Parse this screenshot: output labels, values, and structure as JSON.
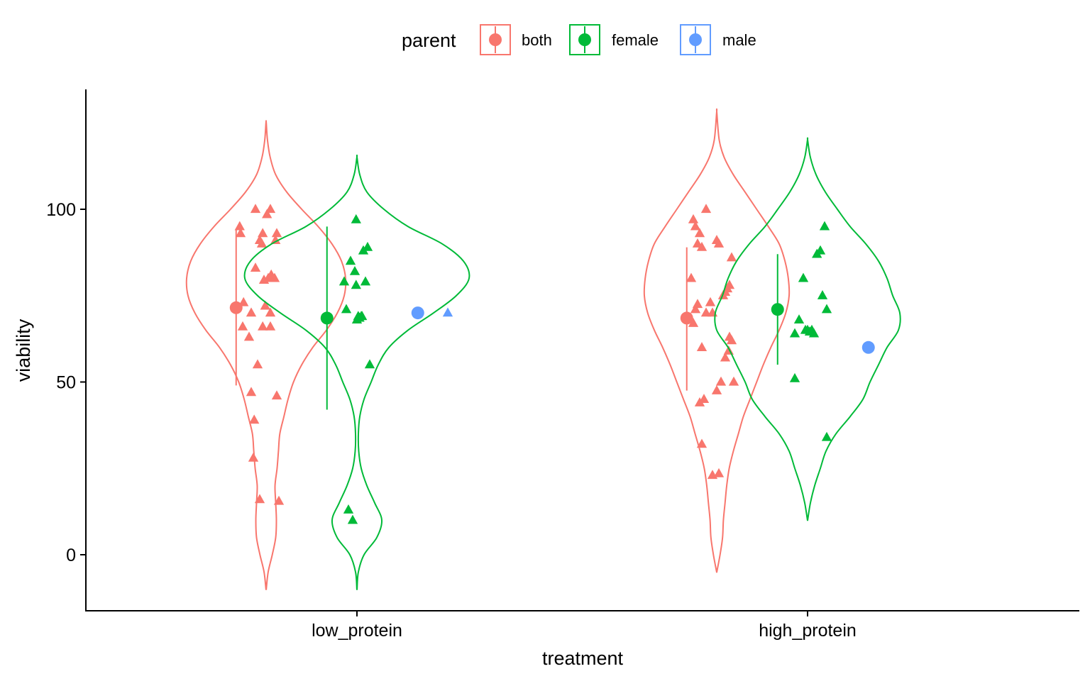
{
  "chart_data": {
    "type": "violin",
    "xlabel": "treatment",
    "ylabel": "viability",
    "categories": [
      "low_protein",
      "high_protein"
    ],
    "ylim": [
      -16,
      135
    ],
    "yticks": [
      0,
      50,
      100
    ],
    "grid": false,
    "legend": {
      "title": "parent",
      "position": "top",
      "entries": [
        {
          "key": "both",
          "label": "both",
          "color": "#F8766D"
        },
        {
          "key": "female",
          "label": "female",
          "color": "#00BA38"
        },
        {
          "key": "male",
          "label": "male",
          "color": "#619CFF"
        }
      ]
    },
    "groups": [
      {
        "category": "low_protein",
        "parent": "both",
        "color": "#F8766D",
        "violin": {
          "profile": [
            [
              -10,
              0.1
            ],
            [
              -5,
              1.5
            ],
            [
              0,
              4.5
            ],
            [
              5,
              7
            ],
            [
              10,
              7.5
            ],
            [
              15,
              7
            ],
            [
              20,
              6.5
            ],
            [
              25,
              8
            ],
            [
              30,
              9
            ],
            [
              35,
              10
            ],
            [
              40,
              13
            ],
            [
              45,
              16
            ],
            [
              50,
              20
            ],
            [
              55,
              26
            ],
            [
              60,
              34
            ],
            [
              65,
              44
            ],
            [
              70,
              52
            ],
            [
              75,
              57
            ],
            [
              80,
              58
            ],
            [
              85,
              55
            ],
            [
              90,
              48
            ],
            [
              95,
              38
            ],
            [
              100,
              26
            ],
            [
              105,
              15
            ],
            [
              110,
              7
            ],
            [
              115,
              3
            ],
            [
              120,
              1
            ],
            [
              125,
              0.1
            ]
          ],
          "max_half_width": 112
        },
        "summary": {
          "mean": 71.5,
          "low": 49,
          "high": 94
        },
        "points": [
          [
            -0.6,
            93
          ],
          [
            -0.62,
            95
          ],
          [
            -0.53,
            73
          ],
          [
            -0.55,
            66
          ],
          [
            -0.4,
            63
          ],
          [
            -0.35,
            70
          ],
          [
            -0.35,
            47
          ],
          [
            -0.28,
            39
          ],
          [
            -0.3,
            28
          ],
          [
            -0.2,
            55
          ],
          [
            -0.15,
            16
          ],
          [
            -0.25,
            100
          ],
          [
            -0.25,
            83
          ],
          [
            -0.05,
            79.5
          ],
          [
            0.05,
            80
          ],
          [
            0.1,
            80.5
          ],
          [
            -0.15,
            91
          ],
          [
            -0.1,
            90
          ],
          [
            -0.08,
            93
          ],
          [
            0.02,
            98.5
          ],
          [
            0.1,
            100
          ],
          [
            0.22,
            91
          ],
          [
            0.2,
            80
          ],
          [
            0.1,
            70
          ],
          [
            0.12,
            81
          ],
          [
            -0.08,
            66
          ],
          [
            -0.02,
            72
          ],
          [
            0.1,
            66
          ],
          [
            0.25,
            46
          ],
          [
            0.3,
            15.5
          ],
          [
            0.25,
            93
          ]
        ]
      },
      {
        "category": "low_protein",
        "parent": "female",
        "color": "#00BA38",
        "violin": {
          "profile": [
            [
              -10,
              0.1
            ],
            [
              -5,
              2
            ],
            [
              0,
              10
            ],
            [
              5,
              28
            ],
            [
              10,
              35
            ],
            [
              15,
              25
            ],
            [
              20,
              14
            ],
            [
              25,
              6
            ],
            [
              30,
              2.5
            ],
            [
              35,
              2
            ],
            [
              40,
              4
            ],
            [
              45,
              10
            ],
            [
              50,
              20
            ],
            [
              55,
              30
            ],
            [
              60,
              45
            ],
            [
              65,
              72
            ],
            [
              70,
              108
            ],
            [
              75,
              140
            ],
            [
              80,
              158
            ],
            [
              85,
              150
            ],
            [
              90,
              120
            ],
            [
              95,
              72
            ],
            [
              100,
              38
            ],
            [
              105,
              14
            ],
            [
              110,
              4
            ],
            [
              115,
              0.1
            ]
          ],
          "max_half_width": 158
        },
        "summary": {
          "mean": 68.5,
          "low": 42,
          "high": 95
        },
        "points": [
          [
            -0.3,
            79
          ],
          [
            -0.25,
            71
          ],
          [
            -0.2,
            13
          ],
          [
            -0.15,
            85
          ],
          [
            -0.1,
            10
          ],
          [
            -0.05,
            82
          ],
          [
            -0.02,
            78
          ],
          [
            -0.02,
            97
          ],
          [
            0.0,
            68
          ],
          [
            0.03,
            69
          ],
          [
            0.06,
            68.5
          ],
          [
            0.1,
            69
          ],
          [
            0.12,
            69
          ],
          [
            0.15,
            88
          ],
          [
            0.2,
            79
          ],
          [
            0.25,
            89
          ],
          [
            0.3,
            55
          ]
        ]
      },
      {
        "category": "low_protein",
        "parent": "male",
        "color": "#619CFF",
        "summary": {
          "mean": 70
        },
        "points": [
          [
            0.0,
            70
          ]
        ]
      },
      {
        "category": "high_protein",
        "parent": "both",
        "color": "#F8766D",
        "violin": {
          "profile": [
            [
              -5,
              0.1
            ],
            [
              0,
              4
            ],
            [
              5,
              7
            ],
            [
              10,
              8
            ],
            [
              15,
              10
            ],
            [
              20,
              12
            ],
            [
              25,
              15
            ],
            [
              30,
              20
            ],
            [
              35,
              26
            ],
            [
              40,
              32
            ],
            [
              45,
              40
            ],
            [
              50,
              48
            ],
            [
              55,
              56
            ],
            [
              60,
              65
            ],
            [
              65,
              75
            ],
            [
              70,
              83
            ],
            [
              75,
              87
            ],
            [
              80,
              86
            ],
            [
              85,
              82
            ],
            [
              90,
              75
            ],
            [
              95,
              62
            ],
            [
              100,
              48
            ],
            [
              105,
              34
            ],
            [
              110,
              20
            ],
            [
              115,
              9
            ],
            [
              120,
              3
            ],
            [
              128,
              0.1
            ]
          ],
          "max_half_width": 102
        },
        "summary": {
          "mean": 68.5,
          "low": 47.5,
          "high": 89
        },
        "points": [
          [
            -0.55,
            97
          ],
          [
            -0.5,
            95
          ],
          [
            -0.4,
            93
          ],
          [
            -0.25,
            100
          ],
          [
            -0.6,
            80
          ],
          [
            -0.5,
            71
          ],
          [
            -0.45,
            72.5
          ],
          [
            -0.25,
            70
          ],
          [
            -0.15,
            73
          ],
          [
            -0.55,
            67
          ],
          [
            -0.45,
            90
          ],
          [
            -0.35,
            89
          ],
          [
            0.0,
            91
          ],
          [
            0.15,
            75
          ],
          [
            0.2,
            76
          ],
          [
            0.25,
            77
          ],
          [
            0.3,
            78
          ],
          [
            0.35,
            86
          ],
          [
            -0.35,
            60
          ],
          [
            -0.3,
            45
          ],
          [
            -0.4,
            44
          ],
          [
            -0.35,
            32
          ],
          [
            -0.1,
            23
          ],
          [
            0.05,
            23.5
          ],
          [
            0.0,
            47.5
          ],
          [
            0.1,
            50
          ],
          [
            0.2,
            57
          ],
          [
            0.28,
            59
          ],
          [
            0.3,
            63
          ],
          [
            0.35,
            62
          ],
          [
            0.4,
            50
          ],
          [
            -0.1,
            70
          ],
          [
            0.05,
            90
          ]
        ]
      },
      {
        "category": "high_protein",
        "parent": "female",
        "color": "#00BA38",
        "violin": {
          "profile": [
            [
              10,
              0.1
            ],
            [
              15,
              4
            ],
            [
              20,
              10
            ],
            [
              25,
              18
            ],
            [
              30,
              26
            ],
            [
              35,
              40
            ],
            [
              40,
              60
            ],
            [
              45,
              78
            ],
            [
              50,
              88
            ],
            [
              55,
              100
            ],
            [
              60,
              112
            ],
            [
              65,
              128
            ],
            [
              70,
              130
            ],
            [
              75,
              120
            ],
            [
              80,
              112
            ],
            [
              85,
              100
            ],
            [
              90,
              82
            ],
            [
              95,
              60
            ],
            [
              100,
              42
            ],
            [
              105,
              25
            ],
            [
              110,
              12
            ],
            [
              115,
              4
            ],
            [
              120,
              0.1
            ]
          ],
          "max_half_width": 130
        },
        "summary": {
          "mean": 71,
          "low": 55,
          "high": 87
        },
        "points": [
          [
            -0.3,
            64
          ],
          [
            -0.2,
            68
          ],
          [
            -0.3,
            51
          ],
          [
            -0.1,
            80
          ],
          [
            -0.05,
            65
          ],
          [
            0.0,
            65
          ],
          [
            0.05,
            64.5
          ],
          [
            0.1,
            65
          ],
          [
            0.15,
            64
          ],
          [
            0.22,
            87
          ],
          [
            0.3,
            88
          ],
          [
            0.35,
            75
          ],
          [
            0.4,
            95
          ],
          [
            0.45,
            71
          ],
          [
            0.45,
            34
          ]
        ]
      },
      {
        "category": "high_protein",
        "parent": "male",
        "color": "#619CFF",
        "summary": {
          "mean": 60
        },
        "points": []
      }
    ]
  }
}
